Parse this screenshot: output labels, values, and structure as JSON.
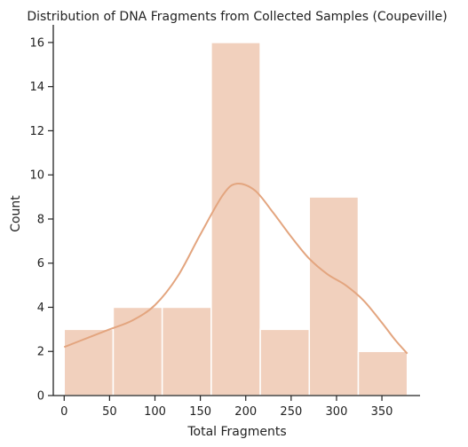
{
  "chart_data": {
    "type": "bar",
    "subtype": "histogram-with-kde",
    "title": "Distribution of DNA Fragments from Collected Samples (Coupeville)",
    "xlabel": "Total Fragments",
    "ylabel": "Count",
    "xlim": [
      -12,
      392
    ],
    "ylim": [
      0,
      16.8
    ],
    "xticks": [
      0,
      50,
      100,
      150,
      200,
      250,
      300,
      350
    ],
    "yticks": [
      0,
      2,
      4,
      6,
      8,
      10,
      12,
      14,
      16
    ],
    "bins": [
      {
        "start": 0,
        "end": 54,
        "count": 3
      },
      {
        "start": 54,
        "end": 108,
        "count": 4
      },
      {
        "start": 108,
        "end": 162,
        "count": 4
      },
      {
        "start": 162,
        "end": 216,
        "count": 16
      },
      {
        "start": 216,
        "end": 270,
        "count": 3
      },
      {
        "start": 270,
        "end": 324,
        "count": 9
      },
      {
        "start": 324,
        "end": 378,
        "count": 2
      }
    ],
    "kde": {
      "x": [
        0,
        25,
        50,
        75,
        100,
        125,
        150,
        175,
        190,
        210,
        230,
        250,
        270,
        290,
        310,
        330,
        350,
        365,
        378
      ],
      "y": [
        2.2,
        2.6,
        3.0,
        3.4,
        4.1,
        5.4,
        7.3,
        9.1,
        9.6,
        9.3,
        8.3,
        7.2,
        6.2,
        5.5,
        5.0,
        4.3,
        3.3,
        2.5,
        1.9
      ]
    },
    "grid": false,
    "legend": "none",
    "colors": {
      "bar_fill": "#f1d0bd",
      "bar_edge": "#ffffff",
      "kde_line": "#e3a57f",
      "axis": "#222222"
    }
  }
}
